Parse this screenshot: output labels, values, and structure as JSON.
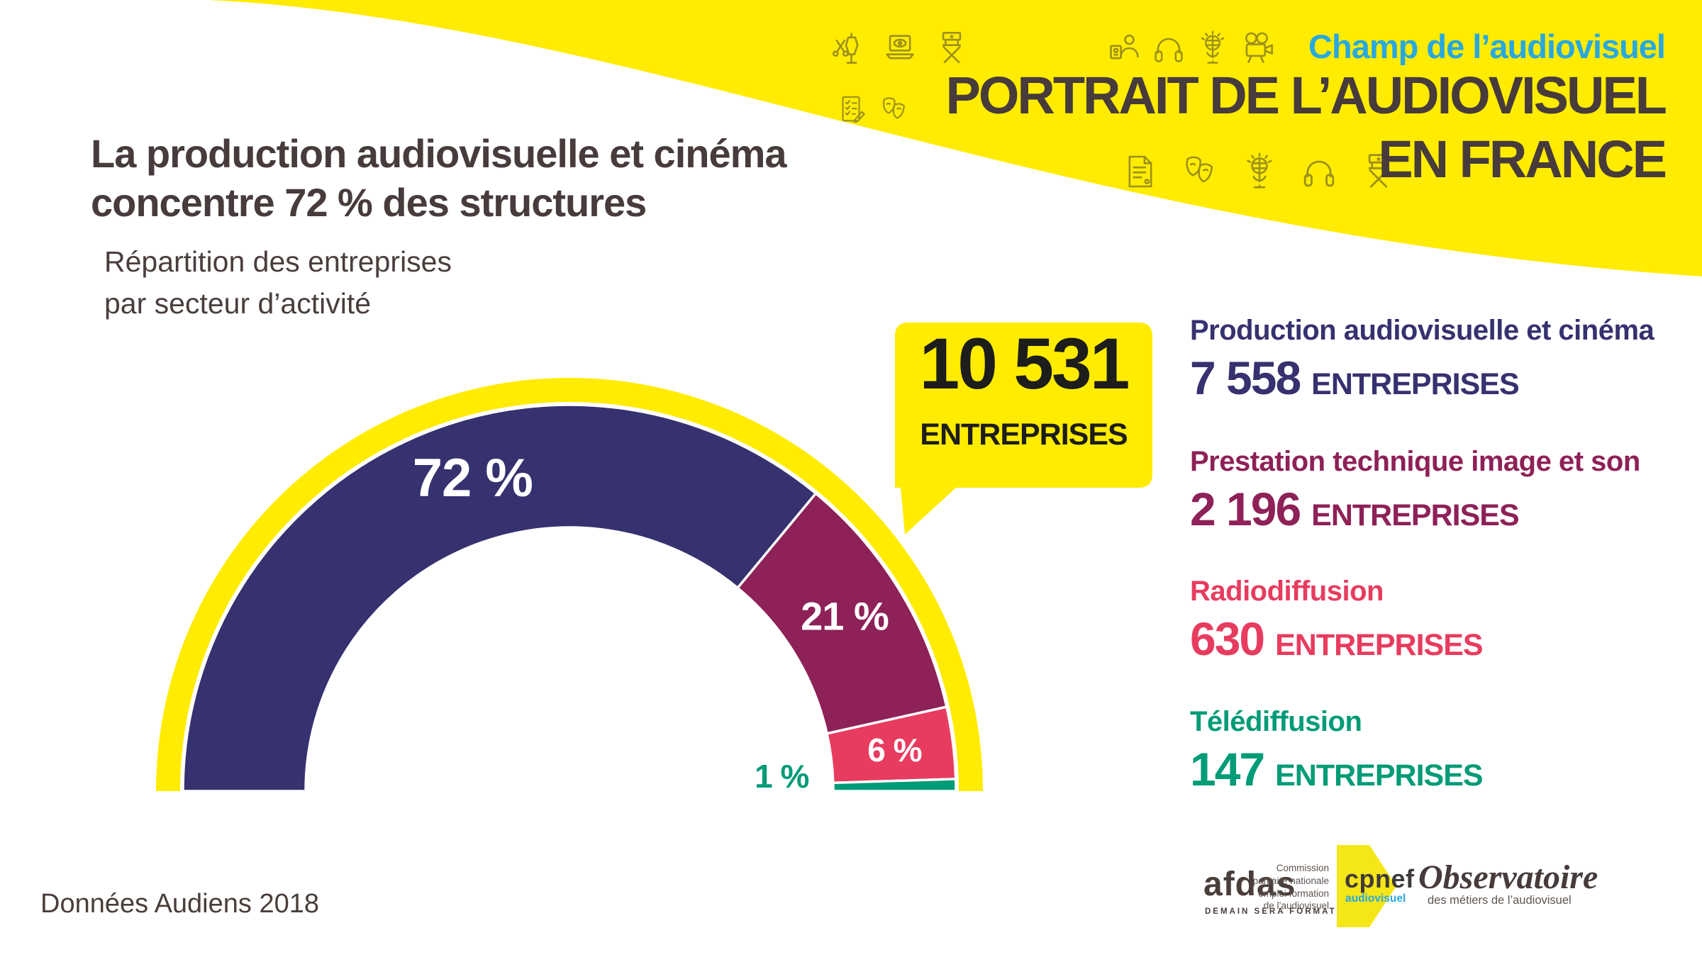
{
  "header": {
    "band_color": "#FFEC00",
    "eyebrow": "Champ de l’audiovisuel",
    "eyebrow_color": "#29A8E0",
    "title_line1": "PORTRAIT DE L’AUDIOVISUEL",
    "title_line2": "EN FRANCE",
    "icons_row1a": [
      "costume-icon",
      "laptop-eye-icon",
      "directors-chair-icon"
    ],
    "icons_row1b": [
      "casting-icon",
      "headphones-icon",
      "microphone-icon",
      "film-camera-icon"
    ],
    "icons_row2": [
      "checklist-icon",
      "theater-masks-icon"
    ],
    "icons_row3": [
      "script-icon",
      "theater-masks-icon",
      "microphone-icon",
      "headphones-icon",
      "directors-chair-icon"
    ]
  },
  "intro": {
    "title_line1": "La production audiovisuelle et cinéma",
    "title_line2": "concentre 72 % des structures",
    "subtitle_line1": "Répartition des entreprises",
    "subtitle_line2": "par secteur d’activité"
  },
  "callout": {
    "number": "10 531",
    "label": "ENTREPRISES",
    "bg": "#FFEC00",
    "text_color": "#1D1D1B"
  },
  "chart_data": {
    "type": "pie",
    "variant": "semicircle-donut",
    "title": "Répartition des entreprises par secteur d’activité",
    "total": 10531,
    "total_label": "10 531 ENTREPRISES",
    "ring_color": "#FFEC00",
    "categories": [
      "Production audiovisuelle et cinéma",
      "Prestation technique image et son",
      "Radiodiffusion",
      "Télédiffusion"
    ],
    "values": [
      7558,
      2196,
      630,
      147
    ],
    "segments": [
      {
        "name": "Production audiovisuelle et cinéma",
        "pct": 72,
        "pct_label": "72 %",
        "value": 7558,
        "value_label": "7 558",
        "color": "#36316F"
      },
      {
        "name": "Prestation technique image et son",
        "pct": 21,
        "pct_label": "21 %",
        "value": 2196,
        "value_label": "2 196",
        "color": "#8E2157"
      },
      {
        "name": "Radiodiffusion",
        "pct": 6,
        "pct_label": "6 %",
        "value": 630,
        "value_label": "630",
        "color": "#E73C5F"
      },
      {
        "name": "Télédiffusion",
        "pct": 1,
        "pct_label": "1 %",
        "value": 147,
        "value_label": "147",
        "color": "#009B77"
      }
    ]
  },
  "legend": {
    "suffix": "ENTREPRISES"
  },
  "footer": {
    "source": "Données Audiens 2018",
    "afdas": {
      "name": "afdas",
      "tagline": "DEMAIN SERA FORMATION"
    },
    "cpnef": {
      "line1": "Commission",
      "line2": "paritaire nationale",
      "line3": "emploi formation",
      "line4": "de l’audiovisuel",
      "name": "cpnef",
      "sub": "audiovisuel"
    },
    "observatoire": {
      "name": "Observatoire",
      "sub": "des métiers de l’audiovisuel"
    }
  }
}
